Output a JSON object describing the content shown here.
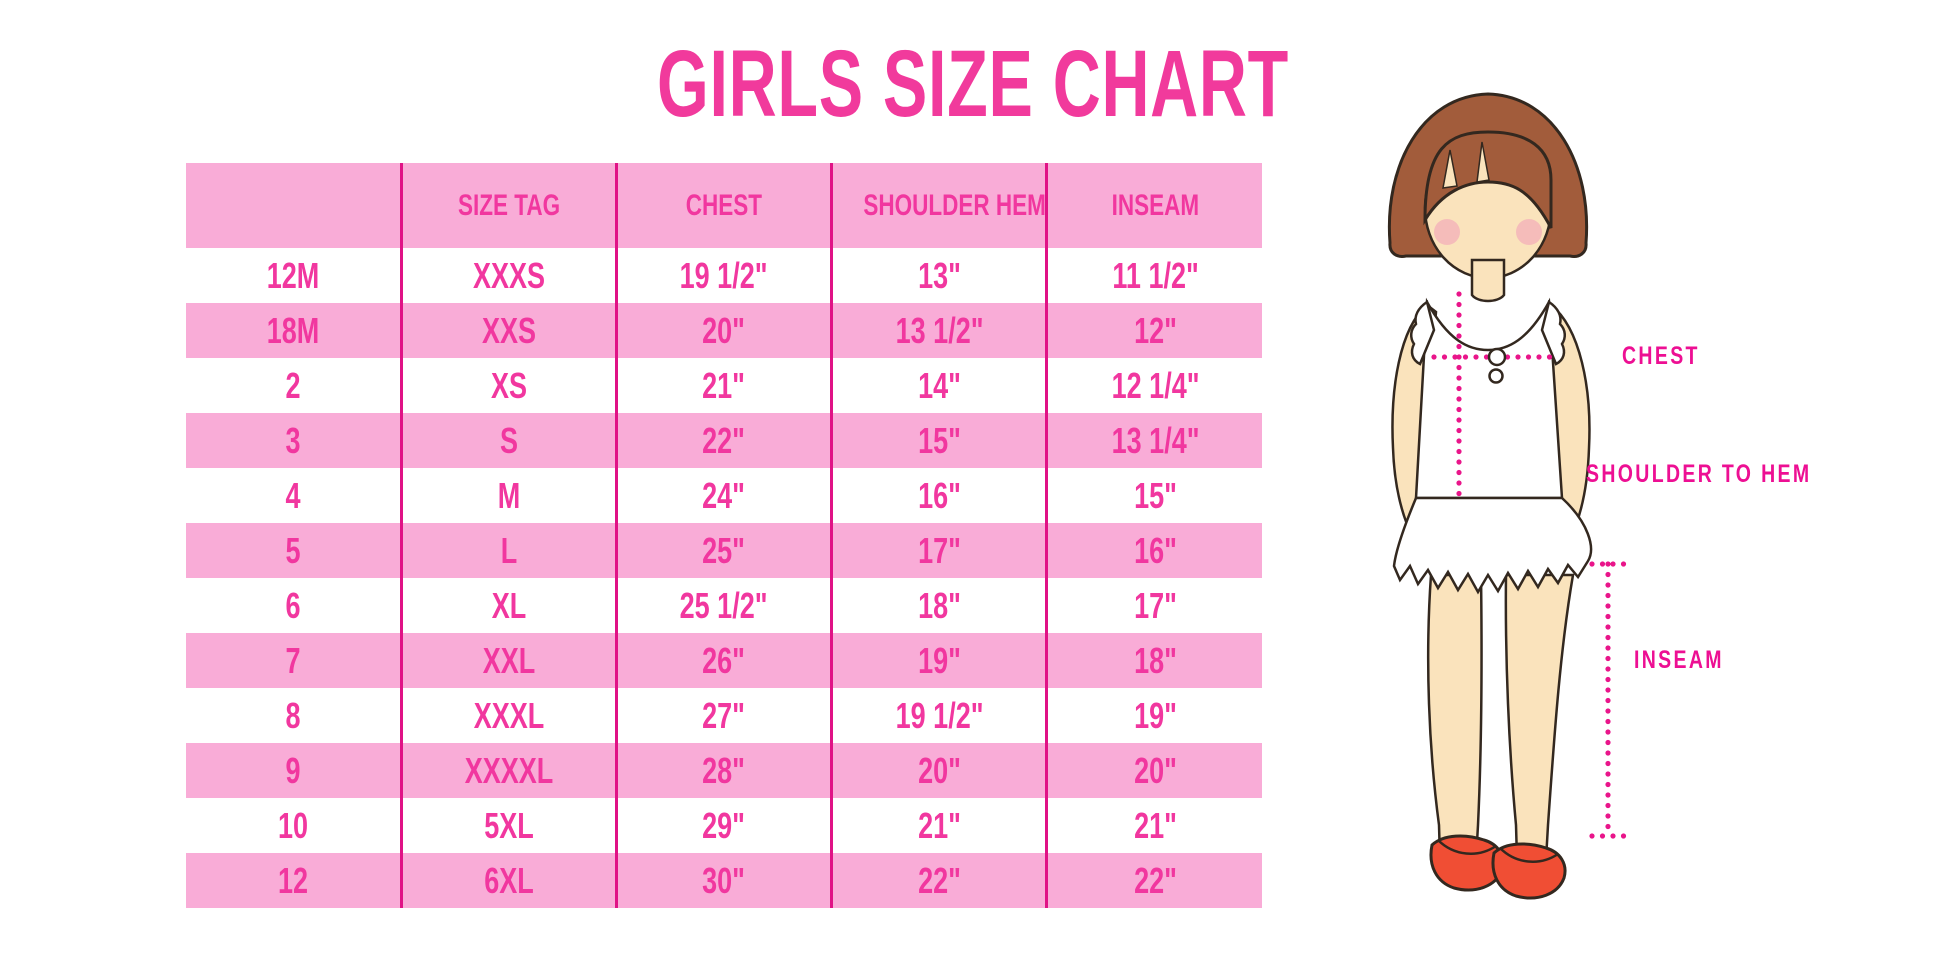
{
  "title": "GIRLS SIZE CHART",
  "chart_data": {
    "type": "table",
    "title": "GIRLS SIZE CHART",
    "columns": [
      "",
      "SIZE TAG",
      "CHEST",
      "SHOULDER HEM",
      "INSEAM"
    ],
    "rows": [
      [
        "12M",
        "XXXS",
        "19 1/2\"",
        "13\"",
        "11 1/2\""
      ],
      [
        "18M",
        "XXS",
        "20\"",
        "13 1/2\"",
        "12\""
      ],
      [
        "2",
        "XS",
        "21\"",
        "14\"",
        "12 1/4\""
      ],
      [
        "3",
        "S",
        "22\"",
        "15\"",
        "13 1/4\""
      ],
      [
        "4",
        "M",
        "24\"",
        "16\"",
        "15\""
      ],
      [
        "5",
        "L",
        "25\"",
        "17\"",
        "16\""
      ],
      [
        "6",
        "XL",
        "25 1/2\"",
        "18\"",
        "17\""
      ],
      [
        "7",
        "XXL",
        "26\"",
        "19\"",
        "18\""
      ],
      [
        "8",
        "XXXL",
        "27\"",
        "19 1/2\"",
        "19\""
      ],
      [
        "9",
        "XXXXL",
        "28\"",
        "20\"",
        "20\""
      ],
      [
        "10",
        "5XL",
        "29\"",
        "21\"",
        "21\""
      ],
      [
        "12",
        "6XL",
        "30\"",
        "22\"",
        "22\""
      ]
    ],
    "legend_position": "none",
    "grid": "vertical-dividers-only",
    "row_striping": "alternating pink/white starting white"
  },
  "figure_labels": {
    "chest": "CHEST",
    "shoulder_to_hem": "SHOULDER TO HEM",
    "inseam": "INSEAM"
  },
  "colors": {
    "row_pink": "#F9ACD7",
    "cell_text": "#F1379F",
    "divider": "#E01286",
    "title_pink": "#F13A9C",
    "label_pink": "#ED0F93",
    "dotted": "#E9158A",
    "hair": "#A25C3B",
    "skin": "#FAE3BC",
    "blush": "#F2A7B8",
    "shoe": "#F04E34",
    "outline": "#33281F"
  }
}
